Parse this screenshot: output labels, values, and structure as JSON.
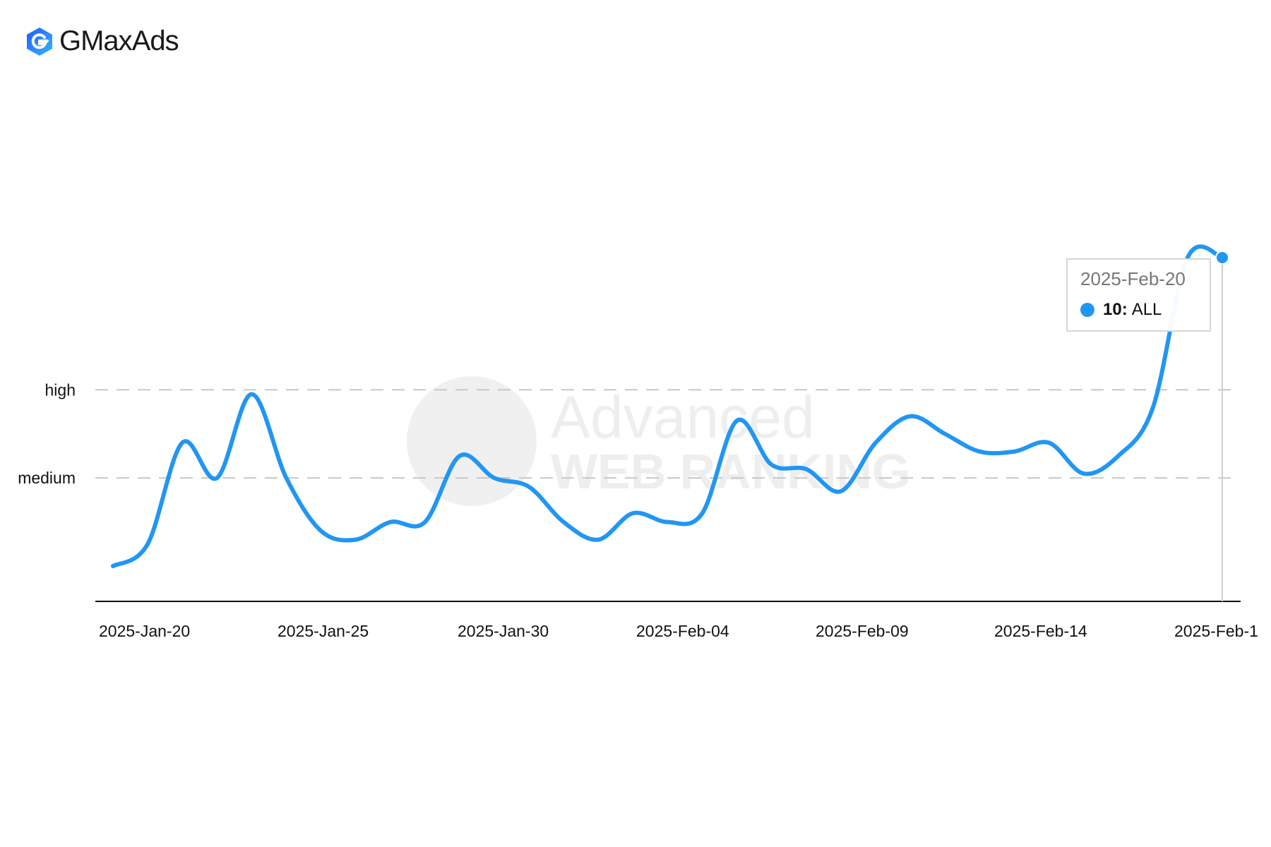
{
  "brand": {
    "name_main": "GMax",
    "name_sub": "Ads"
  },
  "watermark": {
    "line1": "Advanced",
    "line2": "WEB RANKING"
  },
  "tooltip": {
    "date": "2025-Feb-20",
    "value": "10:",
    "series": "ALL"
  },
  "colors": {
    "series": "#2196f3",
    "grid": "#c8c8c8",
    "axis": "#111111",
    "brand_blue": "#2f6bff"
  },
  "chart_data": {
    "type": "line",
    "title": "",
    "xlabel": "",
    "ylabel": "",
    "x_tick_labels": [
      "2025-Jan-20",
      "2025-Jan-25",
      "2025-Jan-30",
      "2025-Feb-04",
      "2025-Feb-09",
      "2025-Feb-14",
      "2025-Feb-1"
    ],
    "x_range": [
      "2025-Jan-19",
      "2025-Feb-20"
    ],
    "y_reference_lines": [
      {
        "label": "high",
        "value": 7
      },
      {
        "label": "medium",
        "value": 5
      }
    ],
    "ylim": [
      2.2,
      10
    ],
    "grid": "dashed horizontal reference lines",
    "series": [
      {
        "name": "ALL",
        "x": [
          "2025-Jan-19",
          "2025-Jan-20",
          "2025-Jan-21",
          "2025-Jan-22",
          "2025-Jan-23",
          "2025-Jan-24",
          "2025-Jan-25",
          "2025-Jan-26",
          "2025-Jan-27",
          "2025-Jan-28",
          "2025-Jan-29",
          "2025-Jan-30",
          "2025-Jan-31",
          "2025-Feb-01",
          "2025-Feb-02",
          "2025-Feb-03",
          "2025-Feb-04",
          "2025-Feb-05",
          "2025-Feb-06",
          "2025-Feb-07",
          "2025-Feb-08",
          "2025-Feb-09",
          "2025-Feb-10",
          "2025-Feb-11",
          "2025-Feb-12",
          "2025-Feb-13",
          "2025-Feb-14",
          "2025-Feb-15",
          "2025-Feb-16",
          "2025-Feb-17",
          "2025-Feb-18",
          "2025-Feb-19",
          "2025-Feb-20"
        ],
        "y": [
          3.0,
          3.5,
          5.8,
          5.0,
          6.9,
          5.0,
          3.8,
          3.6,
          4.0,
          4.0,
          5.5,
          5.0,
          4.8,
          4.0,
          3.6,
          4.2,
          4.0,
          4.2,
          6.3,
          5.3,
          5.2,
          4.7,
          5.8,
          6.4,
          6.0,
          5.6,
          5.6,
          5.8,
          5.1,
          5.5,
          6.6,
          10.0,
          10.0
        ]
      }
    ]
  }
}
